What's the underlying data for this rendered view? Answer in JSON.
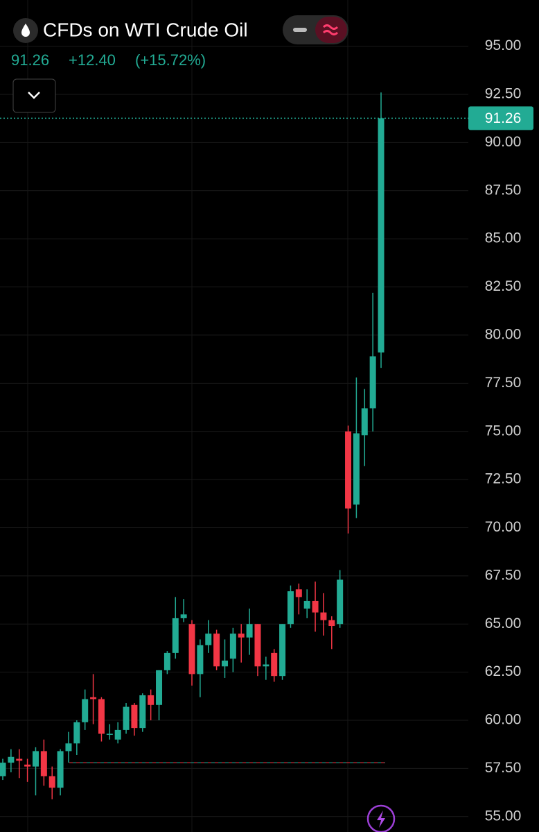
{
  "header": {
    "title": "CFDs on WTI Crude Oil",
    "last": "91.26",
    "change": "+12.40",
    "change_percent": "(+15.72%)"
  },
  "chart_data": {
    "type": "candlestick",
    "open": [
      57.1,
      57.8,
      58.0,
      57.7,
      57.6,
      58.4,
      57.1,
      56.5,
      58.4,
      58.8,
      59.9,
      61.2,
      61.1,
      59.3,
      59.0,
      59.5,
      60.8,
      59.6,
      61.3,
      60.8,
      62.6,
      63.5,
      65.3,
      65.0,
      62.4,
      63.9,
      64.5,
      62.8,
      63.2,
      64.5,
      64.3,
      65.0,
      62.8,
      63.5,
      62.3,
      65.0,
      66.8,
      65.8,
      66.2,
      65.6,
      65.2,
      65.0,
      75.0,
      71.2,
      74.8,
      76.2,
      79.1
    ],
    "high": [
      58.0,
      58.5,
      58.5,
      58.0,
      58.6,
      59.0,
      57.6,
      58.5,
      59.4,
      60.0,
      61.6,
      62.4,
      61.2,
      59.8,
      59.9,
      60.9,
      60.9,
      61.4,
      61.6,
      62.6,
      63.6,
      66.4,
      66.3,
      65.2,
      64.2,
      65.2,
      64.7,
      64.2,
      64.8,
      65.0,
      65.8,
      65.0,
      63.3,
      63.7,
      65.0,
      67.0,
      67.1,
      66.8,
      67.2,
      66.6,
      65.4,
      67.8,
      75.3,
      77.8,
      77.2,
      82.2,
      92.6
    ],
    "low": [
      56.9,
      57.3,
      57.0,
      56.8,
      56.1,
      56.6,
      55.9,
      56.1,
      57.8,
      58.2,
      59.5,
      59.8,
      58.9,
      59.0,
      58.8,
      59.3,
      59.2,
      59.4,
      60.0,
      60.0,
      62.4,
      63.2,
      65.1,
      61.8,
      61.2,
      63.5,
      62.6,
      62.2,
      62.5,
      63.0,
      63.4,
      62.3,
      62.1,
      62.0,
      62.1,
      64.8,
      65.5,
      65.3,
      64.6,
      64.4,
      63.7,
      64.8,
      69.7,
      70.5,
      73.2,
      75.0,
      78.3
    ],
    "close": [
      57.8,
      58.1,
      57.9,
      57.6,
      58.4,
      57.1,
      56.5,
      58.4,
      58.8,
      59.9,
      61.1,
      61.1,
      59.3,
      59.3,
      59.5,
      60.7,
      59.6,
      61.3,
      60.8,
      62.6,
      63.5,
      65.3,
      65.5,
      62.4,
      63.9,
      64.5,
      62.8,
      63.1,
      64.5,
      64.3,
      65.0,
      62.8,
      62.9,
      62.3,
      65.0,
      66.7,
      66.4,
      66.2,
      65.6,
      65.2,
      64.9,
      67.3,
      71.0,
      74.9,
      76.2,
      78.9,
      91.26
    ],
    "up_color": "#22ab94",
    "down_color": "#f23645",
    "last_price": 91.26,
    "reference_line": 57.8,
    "ylim": [
      54.2,
      97.4
    ],
    "yticks": [
      {
        "value": 55,
        "label": "55.00"
      },
      {
        "value": 57.5,
        "label": "57.50"
      },
      {
        "value": 60,
        "label": "60.00"
      },
      {
        "value": 62.5,
        "label": "62.50"
      },
      {
        "value": 65,
        "label": "65.00"
      },
      {
        "value": 67.5,
        "label": "67.50"
      },
      {
        "value": 70,
        "label": "70.00"
      },
      {
        "value": 72.5,
        "label": "72.50"
      },
      {
        "value": 75,
        "label": "75.00"
      },
      {
        "value": 77.5,
        "label": "77.50"
      },
      {
        "value": 80,
        "label": "80.00"
      },
      {
        "value": 82.5,
        "label": "82.50"
      },
      {
        "value": 85,
        "label": "85.00"
      },
      {
        "value": 87.5,
        "label": "87.50"
      },
      {
        "value": 90,
        "label": "90.00"
      },
      {
        "value": 92.5,
        "label": "92.50"
      },
      {
        "value": 95,
        "label": "95.00"
      }
    ],
    "grid": true
  }
}
